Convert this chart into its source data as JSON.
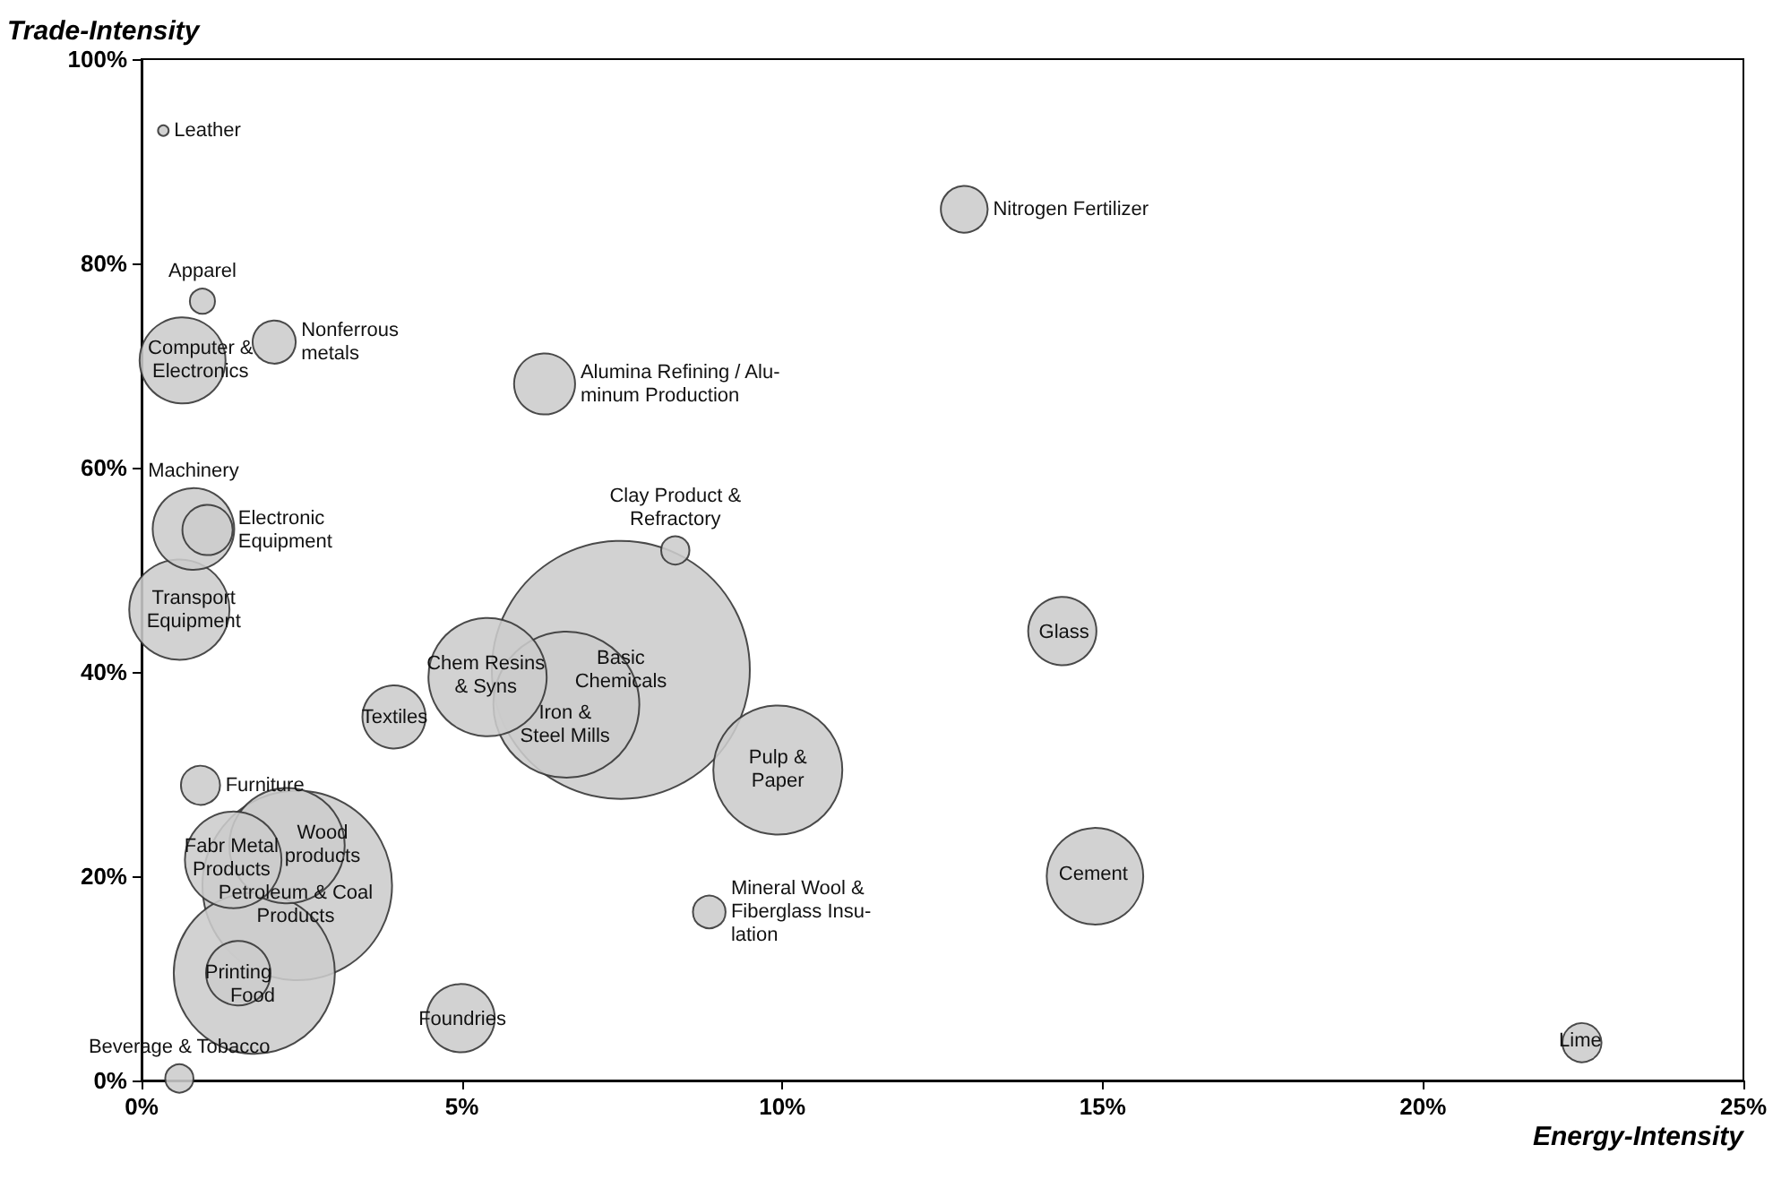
{
  "chart_data": {
    "type": "bubble",
    "xlabel": "Energy-Intensity",
    "ylabel": "Trade-Intensity",
    "x": [
      0.34,
      0.95,
      0.64,
      2.07,
      6.29,
      12.84,
      0.81,
      1.03,
      0.59,
      8.33,
      14.37,
      5.4,
      7.48,
      6.63,
      3.94,
      9.93,
      0.92,
      14.88,
      1.43,
      2.27,
      2.43,
      1.51,
      1.76,
      8.86,
      4.98,
      22.48,
      0.59
    ],
    "values": [
      93,
      76.3,
      70.5,
      72.3,
      68.2,
      85.3,
      54,
      53.9,
      46.1,
      51.9,
      44,
      39.5,
      40.2,
      36.8,
      35.6,
      30.4,
      28.9,
      20,
      21.6,
      23,
      19.1,
      10.5,
      10.5,
      16.5,
      6.1,
      3.7,
      0.2
    ],
    "sizes": [
      0.0017,
      0.0095,
      0.111,
      0.028,
      0.056,
      0.033,
      0.1,
      0.038,
      0.151,
      0.012,
      0.07,
      0.21,
      1,
      0.32,
      0.06,
      0.25,
      0.023,
      0.14,
      0.14,
      0.2,
      0.54,
      0.0625,
      0.39,
      0.016,
      0.07,
      0.023,
      0.012
    ],
    "color": "#cccccc",
    "annotations": [
      {
        "text": "Leather",
        "x": 0.34,
        "y": 93
      },
      {
        "text": "Apparel",
        "x": 0.95,
        "y": 76.3
      },
      {
        "text": "Computer &\nElectronics",
        "x": 0.64,
        "y": 70.5
      },
      {
        "text": "Nonferrous\nmetals",
        "x": 2.07,
        "y": 72.3
      },
      {
        "text": "Alumina Refining / Alu-\nminum Production",
        "x": 6.29,
        "y": 68.2
      },
      {
        "text": "Nitrogen Fertilizer",
        "x": 12.84,
        "y": 85.3
      },
      {
        "text": "Machinery",
        "x": 0.81,
        "y": 54
      },
      {
        "text": "Electronic\nEquipment",
        "x": 1.03,
        "y": 53.9
      },
      {
        "text": "Transport\nEquipment",
        "x": 0.59,
        "y": 46.1
      },
      {
        "text": "Clay Product &\nRefractory",
        "x": 8.33,
        "y": 51.9
      },
      {
        "text": "Glass",
        "x": 14.37,
        "y": 44
      },
      {
        "text": "Chem Resins\n& Syns",
        "x": 5.4,
        "y": 39.5
      },
      {
        "text": "Basic\nChemicals",
        "x": 7.48,
        "y": 40.2
      },
      {
        "text": "Iron &\nSteel Mills",
        "x": 6.63,
        "y": 36.8
      },
      {
        "text": "Textiles",
        "x": 3.94,
        "y": 35.6
      },
      {
        "text": "Pulp &\nPaper",
        "x": 9.93,
        "y": 30.4
      },
      {
        "text": "Furniture",
        "x": 0.92,
        "y": 28.9
      },
      {
        "text": "Cement",
        "x": 14.88,
        "y": 20
      },
      {
        "text": "Fabr Metal\nProducts",
        "x": 1.43,
        "y": 21.6
      },
      {
        "text": "Wood\nproducts",
        "x": 2.27,
        "y": 23
      },
      {
        "text": "Petroleum & Coal\nProducts",
        "x": 2.43,
        "y": 19.1
      },
      {
        "text": "Printing",
        "x": 1.51,
        "y": 10.5
      },
      {
        "text": "Food",
        "x": 1.76,
        "y": 10.5
      },
      {
        "text": "Mineral Wool &\nFiberglass Insu-\nlation",
        "x": 8.86,
        "y": 16.5
      },
      {
        "text": "Foundries",
        "x": 4.98,
        "y": 6.1
      },
      {
        "text": "Lime",
        "x": 22.48,
        "y": 3.7
      },
      {
        "text": "Beverage & Tobacco",
        "x": 0.59,
        "y": 0.2
      }
    ],
    "xlim": [
      0,
      25
    ],
    "xticks": [
      {
        "value": 0,
        "label": "0%"
      },
      {
        "value": 5,
        "label": "5%"
      },
      {
        "value": 10,
        "label": "10%"
      },
      {
        "value": 15,
        "label": "15%"
      },
      {
        "value": 20,
        "label": "20%"
      },
      {
        "value": 25,
        "label": "25%"
      }
    ],
    "ylim": [
      0,
      100
    ],
    "yticks": [
      {
        "value": 0,
        "label": "0%"
      },
      {
        "value": 20,
        "label": "20%"
      },
      {
        "value": 40,
        "label": "40%"
      },
      {
        "value": 60,
        "label": "60%"
      },
      {
        "value": 80,
        "label": "80%"
      },
      {
        "value": 100,
        "label": "100%"
      }
    ],
    "grid": false
  }
}
